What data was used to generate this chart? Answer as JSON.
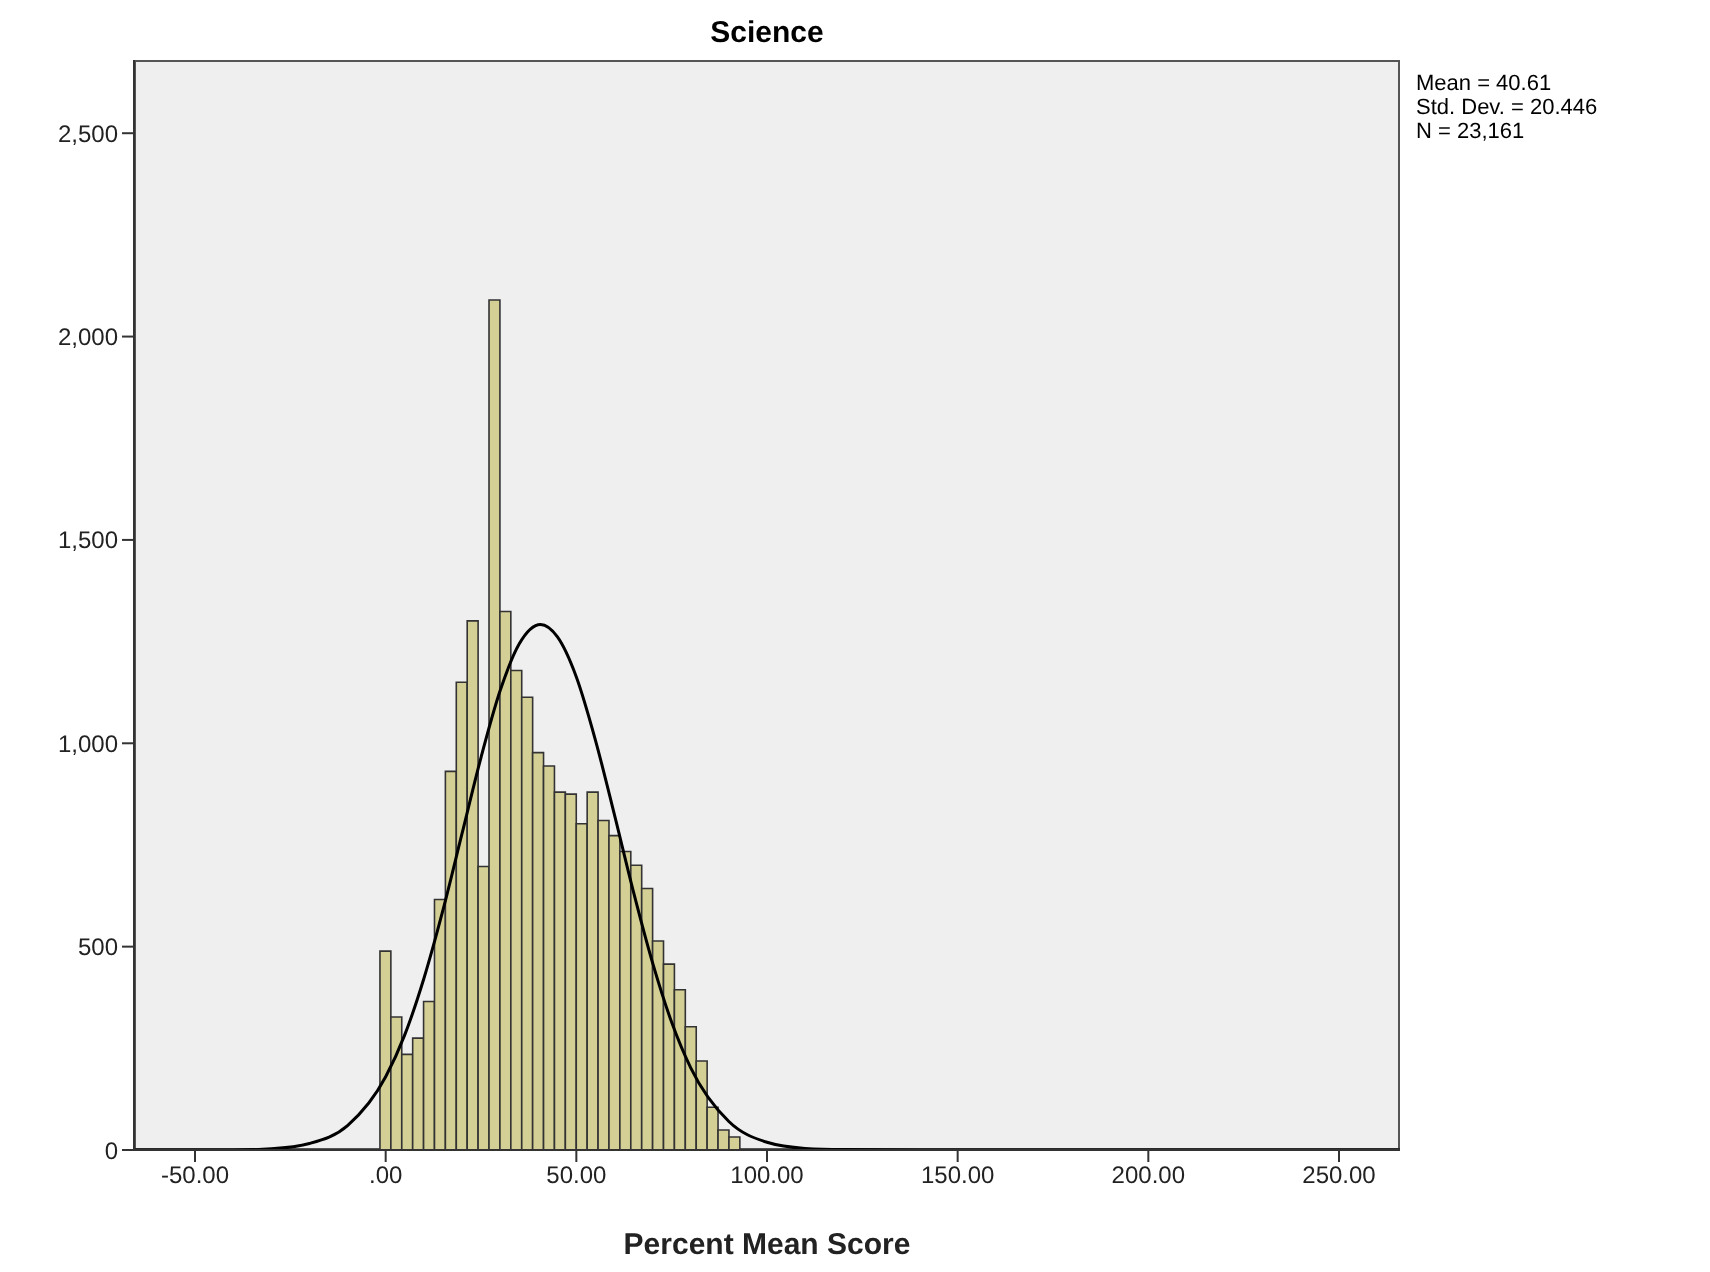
{
  "chart_data": {
    "type": "histogram",
    "title": "Science",
    "xlabel": "Percent Mean Score",
    "annotations": [
      "Mean = 40.61",
      "Std. Dev. = 20.446",
      "N = 23,161"
    ],
    "xlim": [
      -66,
      266
    ],
    "xticks": [
      {
        "value": -50,
        "label": "-50.00"
      },
      {
        "value": 0,
        "label": ".00"
      },
      {
        "value": 50,
        "label": "50.00"
      },
      {
        "value": 100,
        "label": "100.00"
      },
      {
        "value": 150,
        "label": "150.00"
      },
      {
        "value": 200,
        "label": "200.00"
      },
      {
        "value": 250,
        "label": "250.00"
      }
    ],
    "ylim": [
      0,
      2680
    ],
    "yticks": [
      0,
      500,
      {
        "value": 1000,
        "label": "1,000"
      },
      {
        "value": 1500,
        "label": "1,500"
      },
      {
        "value": 2000,
        "label": "2,000"
      },
      {
        "value": 2500,
        "label": "2,500"
      }
    ],
    "series": [
      {
        "color": "#d4cf95",
        "bins": [
          -1.5,
          1.36,
          4.22,
          7.08,
          9.94,
          12.8,
          15.66,
          18.52,
          21.38,
          24.24,
          27.1,
          29.96,
          32.82,
          35.68,
          38.54,
          41.4,
          44.26,
          47.12,
          49.98,
          52.84,
          55.7,
          58.56,
          61.42,
          64.28,
          67.14,
          70,
          72.86,
          75.72,
          78.58,
          81.44,
          84.3,
          87.16,
          90.02,
          92.88
        ],
        "values": [
          489,
          327,
          235,
          275,
          365,
          616,
          931,
          1150,
          1301,
          697,
          2090,
          1324,
          1179,
          1113,
          977,
          944,
          880,
          875,
          802,
          880,
          810,
          773,
          734,
          700,
          643,
          514,
          457,
          394,
          303,
          219,
          105,
          49,
          32
        ]
      },
      {
        "type": "line",
        "color": "#000000",
        "x": [
          -66,
          -40,
          -30,
          -20,
          -10,
          0,
          5,
          10,
          15,
          20,
          25,
          30,
          35,
          40.61,
          45,
          50,
          55,
          60,
          65,
          70,
          75,
          80,
          90,
          100,
          110,
          120,
          140,
          266
        ],
        "values": [
          0,
          0,
          3,
          16,
          60,
          180,
          283,
          421,
          589,
          777,
          965,
          1129,
          1244,
          1292,
          1262,
          1163,
          1008,
          824,
          634,
          460,
          314,
          202,
          70,
          19,
          4,
          1,
          0,
          0
        ]
      }
    ]
  }
}
